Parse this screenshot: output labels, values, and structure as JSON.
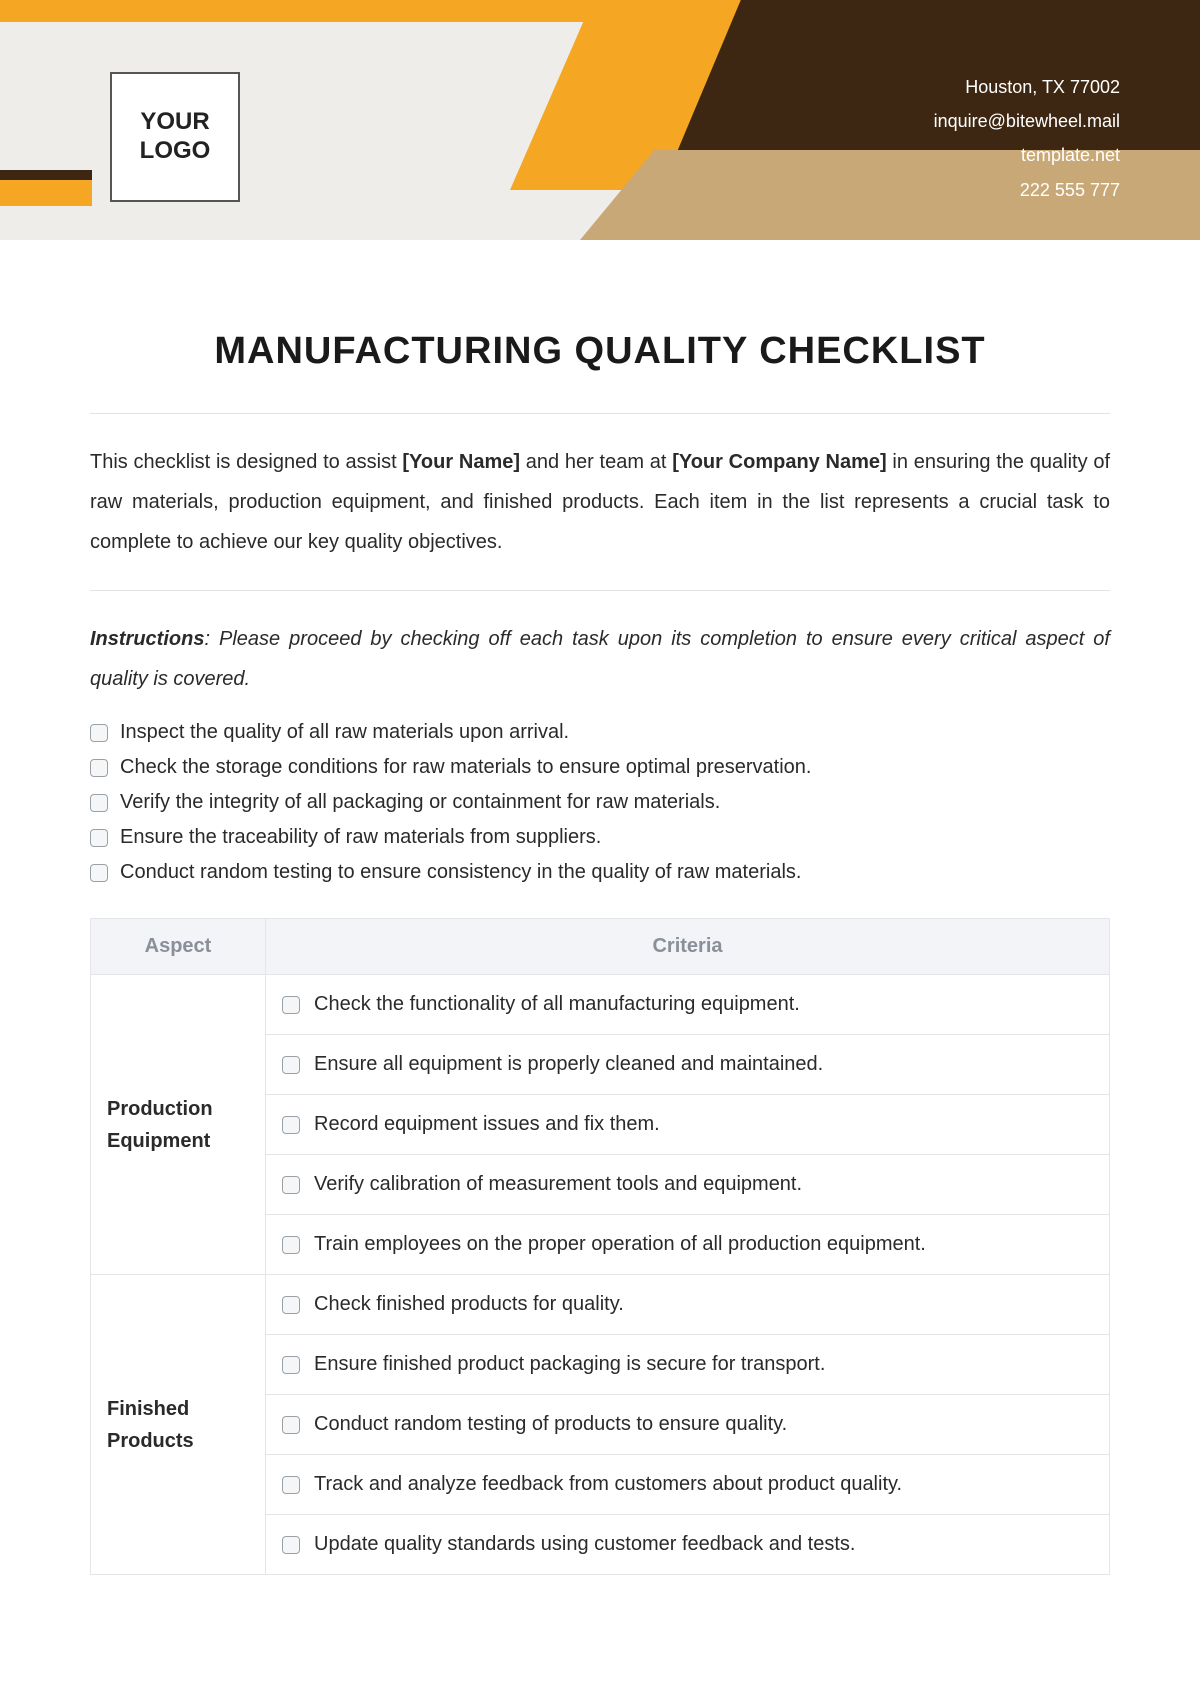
{
  "header": {
    "logo_line1": "YOUR",
    "logo_line2": "LOGO",
    "contact": {
      "address": "Houston, TX 77002",
      "email": "inquire@bitewheel.mail",
      "website": "template.net",
      "phone": "222 555 777"
    },
    "colors": {
      "orange": "#f5a623",
      "brown": "#3e2712",
      "tan": "#c9a877",
      "bg": "#efedea"
    }
  },
  "title": "MANUFACTURING QUALITY CHECKLIST",
  "intro": {
    "pre": "This checklist is designed to assist ",
    "placeholder1": "[Your Name]",
    "mid1": " and her team at ",
    "placeholder2": "[Your Company Name]",
    "post": " in ensuring the quality of raw materials, production equipment, and finished products. Each item in the list represents a crucial task to complete to achieve our key quality objectives."
  },
  "instructions": {
    "label": "Instructions",
    "text": ": Please proceed by checking off each task upon its completion to ensure every critical aspect of quality is covered."
  },
  "raw_checks": [
    "Inspect the quality of all raw materials upon arrival.",
    "Check the storage conditions for raw materials to ensure optimal preservation.",
    "Verify the integrity of all packaging or containment for raw materials.",
    "Ensure the traceability of raw materials from suppliers.",
    "Conduct random testing to ensure consistency in the quality of raw materials."
  ],
  "table": {
    "headers": {
      "aspect": "Aspect",
      "criteria": "Criteria"
    },
    "sections": [
      {
        "aspect": "Production Equipment",
        "items": [
          "Check the functionality of all manufacturing equipment.",
          "Ensure all equipment is properly cleaned and maintained.",
          "Record equipment issues and fix them.",
          "Verify calibration of measurement tools and equipment.",
          "Train employees on the proper operation of all production equipment."
        ]
      },
      {
        "aspect": "Finished Products",
        "items": [
          "Check finished products for quality.",
          "Ensure finished product packaging is secure for transport.",
          "Conduct random testing of products to ensure quality.",
          "Track and analyze feedback from customers about product quality.",
          "Update quality standards using customer feedback and tests."
        ]
      }
    ]
  }
}
